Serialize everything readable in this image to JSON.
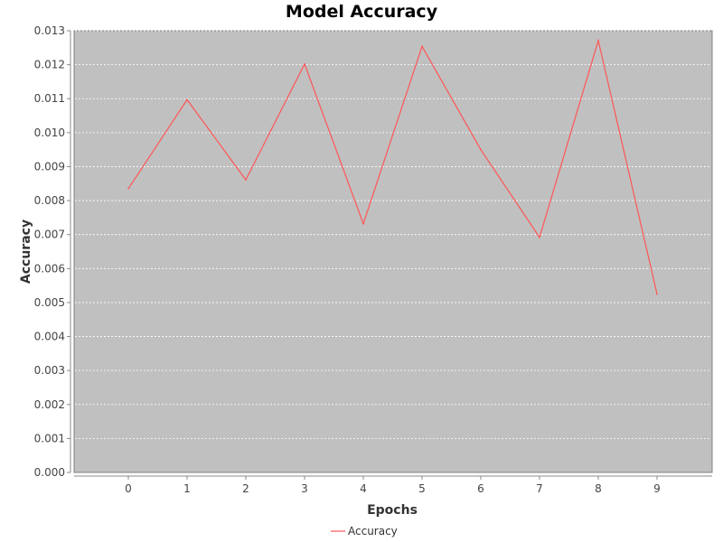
{
  "chart_data": {
    "type": "line",
    "title": "Model Accuracy",
    "xlabel": "Epochs",
    "ylabel": "Accuracy",
    "categories": [
      "0",
      "1",
      "2",
      "3",
      "4",
      "5",
      "6",
      "7",
      "8",
      "9"
    ],
    "series": [
      {
        "name": "Accuracy",
        "color": "#ff5555",
        "values": [
          0.00835,
          0.01097,
          0.00861,
          0.01202,
          0.00732,
          0.01254,
          0.0095,
          0.00692,
          0.01271,
          0.00525
        ]
      }
    ],
    "ylim": [
      0,
      0.013
    ],
    "yticks": [
      "0.000",
      "0.001",
      "0.002",
      "0.003",
      "0.004",
      "0.005",
      "0.006",
      "0.007",
      "0.008",
      "0.009",
      "0.010",
      "0.011",
      "0.012",
      "0.013"
    ],
    "grid": true,
    "legend": "bottom-center",
    "plot_background": "#c0c0c0",
    "gridline_color": "#ffffff"
  }
}
